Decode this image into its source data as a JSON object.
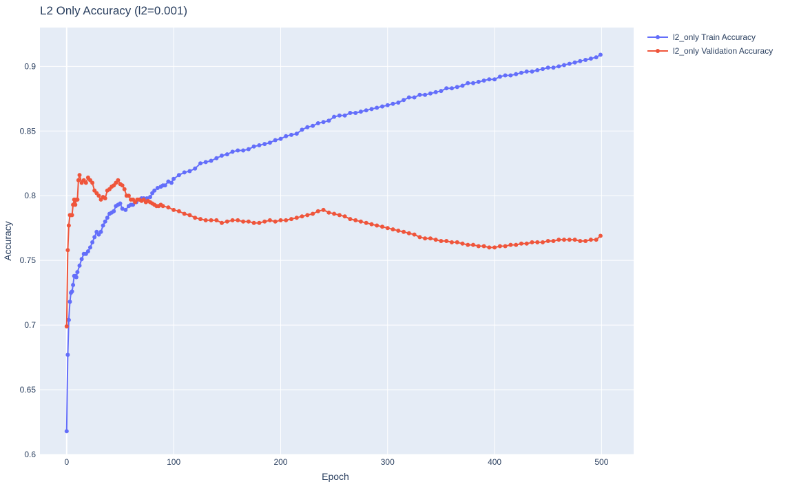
{
  "chart_data": {
    "type": "line",
    "title": "L2 Only Accuracy (l2=0.001)",
    "xlabel": "Epoch",
    "ylabel": "Accuracy",
    "xlim": [
      -25,
      530
    ],
    "ylim": [
      0.6,
      0.93
    ],
    "x_ticks": [
      0,
      100,
      200,
      300,
      400,
      500
    ],
    "y_ticks": [
      0.6,
      0.65,
      0.7,
      0.75,
      0.8,
      0.85,
      0.9
    ],
    "x_tick_labels": [
      "0",
      "100",
      "200",
      "300",
      "400",
      "500"
    ],
    "y_tick_labels": [
      "0.6",
      "0.65",
      "0.7",
      "0.75",
      "0.8",
      "0.85",
      "0.9"
    ],
    "grid": true,
    "legend_position": "top-right",
    "plot_background": "#e5ecf6",
    "series": [
      {
        "name": "l2_only Train Accuracy",
        "color": "#636efa",
        "mode": "lines+markers",
        "x": [
          0,
          1,
          2,
          3,
          4,
          5,
          6,
          7,
          8,
          9,
          10,
          12,
          14,
          16,
          18,
          20,
          22,
          24,
          26,
          28,
          30,
          32,
          34,
          36,
          38,
          40,
          42,
          44,
          46,
          48,
          50,
          52,
          55,
          58,
          60,
          62,
          65,
          68,
          70,
          72,
          75,
          78,
          80,
          82,
          85,
          88,
          90,
          92,
          95,
          98,
          100,
          105,
          110,
          115,
          120,
          125,
          130,
          135,
          140,
          145,
          150,
          155,
          160,
          165,
          170,
          175,
          180,
          185,
          190,
          195,
          200,
          205,
          210,
          215,
          220,
          225,
          230,
          235,
          240,
          245,
          250,
          255,
          260,
          265,
          270,
          275,
          280,
          285,
          290,
          295,
          300,
          305,
          310,
          315,
          320,
          325,
          330,
          335,
          340,
          345,
          350,
          355,
          360,
          365,
          370,
          375,
          380,
          385,
          390,
          395,
          400,
          405,
          410,
          415,
          420,
          425,
          430,
          435,
          440,
          445,
          450,
          455,
          460,
          465,
          470,
          475,
          480,
          485,
          490,
          495,
          499
        ],
        "y": [
          0.618,
          0.677,
          0.704,
          0.718,
          0.725,
          0.726,
          0.731,
          0.738,
          0.738,
          0.737,
          0.741,
          0.746,
          0.751,
          0.755,
          0.755,
          0.757,
          0.76,
          0.764,
          0.768,
          0.772,
          0.77,
          0.772,
          0.777,
          0.78,
          0.783,
          0.786,
          0.787,
          0.788,
          0.792,
          0.793,
          0.794,
          0.79,
          0.789,
          0.792,
          0.793,
          0.793,
          0.795,
          0.797,
          0.798,
          0.798,
          0.798,
          0.799,
          0.802,
          0.804,
          0.806,
          0.807,
          0.808,
          0.808,
          0.811,
          0.81,
          0.813,
          0.816,
          0.818,
          0.819,
          0.821,
          0.825,
          0.826,
          0.827,
          0.829,
          0.831,
          0.832,
          0.834,
          0.835,
          0.835,
          0.836,
          0.838,
          0.839,
          0.84,
          0.841,
          0.843,
          0.844,
          0.846,
          0.847,
          0.848,
          0.851,
          0.853,
          0.854,
          0.856,
          0.857,
          0.858,
          0.861,
          0.862,
          0.862,
          0.864,
          0.864,
          0.865,
          0.866,
          0.867,
          0.868,
          0.869,
          0.87,
          0.871,
          0.872,
          0.874,
          0.876,
          0.876,
          0.878,
          0.878,
          0.879,
          0.88,
          0.881,
          0.883,
          0.883,
          0.884,
          0.885,
          0.887,
          0.887,
          0.888,
          0.889,
          0.89,
          0.89,
          0.892,
          0.893,
          0.893,
          0.894,
          0.895,
          0.896,
          0.896,
          0.897,
          0.898,
          0.899,
          0.899,
          0.9,
          0.901,
          0.902,
          0.903,
          0.904,
          0.905,
          0.906,
          0.907,
          0.909
        ]
      },
      {
        "name": "l2_only Validation Accuracy",
        "color": "#ef553b",
        "mode": "lines+markers",
        "x": [
          0,
          1,
          2,
          3,
          4,
          5,
          6,
          7,
          8,
          9,
          10,
          11,
          12,
          14,
          16,
          18,
          20,
          22,
          24,
          26,
          28,
          30,
          32,
          34,
          36,
          38,
          40,
          42,
          44,
          46,
          48,
          50,
          52,
          54,
          56,
          58,
          60,
          62,
          64,
          66,
          68,
          70,
          72,
          74,
          76,
          78,
          80,
          82,
          84,
          86,
          88,
          90,
          95,
          100,
          105,
          110,
          115,
          120,
          125,
          130,
          135,
          140,
          145,
          150,
          155,
          160,
          165,
          170,
          175,
          180,
          185,
          190,
          195,
          200,
          205,
          210,
          215,
          220,
          225,
          230,
          235,
          240,
          245,
          250,
          255,
          260,
          265,
          270,
          275,
          280,
          285,
          290,
          295,
          300,
          305,
          310,
          315,
          320,
          325,
          330,
          335,
          340,
          345,
          350,
          355,
          360,
          365,
          370,
          375,
          380,
          385,
          390,
          395,
          400,
          405,
          410,
          415,
          420,
          425,
          430,
          435,
          440,
          445,
          450,
          455,
          460,
          465,
          470,
          475,
          480,
          485,
          490,
          495,
          499
        ],
        "y": [
          0.699,
          0.758,
          0.777,
          0.785,
          0.785,
          0.785,
          0.793,
          0.797,
          0.793,
          0.797,
          0.797,
          0.812,
          0.816,
          0.81,
          0.812,
          0.81,
          0.814,
          0.812,
          0.81,
          0.804,
          0.802,
          0.8,
          0.797,
          0.799,
          0.798,
          0.804,
          0.805,
          0.807,
          0.808,
          0.81,
          0.812,
          0.809,
          0.808,
          0.805,
          0.8,
          0.8,
          0.797,
          0.797,
          0.795,
          0.797,
          0.797,
          0.796,
          0.797,
          0.795,
          0.796,
          0.795,
          0.794,
          0.793,
          0.792,
          0.792,
          0.793,
          0.792,
          0.791,
          0.789,
          0.788,
          0.786,
          0.785,
          0.783,
          0.782,
          0.781,
          0.781,
          0.781,
          0.779,
          0.78,
          0.781,
          0.781,
          0.78,
          0.78,
          0.779,
          0.779,
          0.78,
          0.781,
          0.78,
          0.781,
          0.781,
          0.782,
          0.783,
          0.784,
          0.785,
          0.786,
          0.788,
          0.789,
          0.787,
          0.786,
          0.785,
          0.784,
          0.782,
          0.781,
          0.78,
          0.779,
          0.778,
          0.777,
          0.776,
          0.775,
          0.774,
          0.773,
          0.772,
          0.771,
          0.77,
          0.768,
          0.767,
          0.767,
          0.766,
          0.765,
          0.765,
          0.764,
          0.764,
          0.763,
          0.762,
          0.762,
          0.761,
          0.761,
          0.76,
          0.76,
          0.761,
          0.761,
          0.762,
          0.762,
          0.763,
          0.763,
          0.764,
          0.764,
          0.764,
          0.765,
          0.765,
          0.766,
          0.766,
          0.766,
          0.766,
          0.765,
          0.765,
          0.766,
          0.766,
          0.769
        ]
      }
    ]
  }
}
